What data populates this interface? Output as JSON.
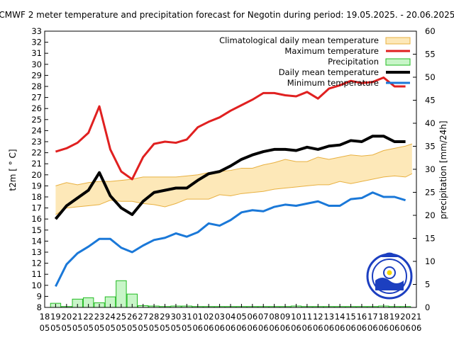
{
  "chart_data": {
    "type": "line",
    "title": "ECMWF 2 meter temperature and precipitation forecast for Negotin during period: 19.05.2025. - 20.06.2025.",
    "ylabel": "t2m [ ° C]",
    "y2label": "precipitation [mm/24h]",
    "xlabel": "",
    "ylim": [
      8,
      33
    ],
    "y2lim": [
      0,
      60
    ],
    "grid": false,
    "legend_position": "top-right",
    "x_dates": [
      "18 05",
      "19 05",
      "20 05",
      "21 05",
      "22 05",
      "23 05",
      "24 05",
      "25 05",
      "26 05",
      "27 05",
      "28 05",
      "29 05",
      "30 05",
      "31 05",
      "01 06",
      "02 06",
      "03 06",
      "04 06",
      "05 06",
      "06 06",
      "07 06",
      "08 06",
      "09 06",
      "10 06",
      "11 06",
      "12 06",
      "13 06",
      "14 06",
      "15 06",
      "16 06",
      "17 06",
      "18 06",
      "19 06",
      "20 06",
      "21 06"
    ],
    "series": [
      {
        "name": "Climatological daily mean temperature",
        "type": "band",
        "color": "#fde8b8",
        "edge_color": "#e8b040",
        "x": [
          1,
          2,
          3,
          4,
          5,
          6,
          7,
          8,
          9,
          10,
          11,
          12,
          13,
          14,
          15,
          16,
          17,
          18,
          19,
          20,
          21,
          22,
          23,
          24,
          25,
          26,
          27,
          28,
          29,
          30,
          31,
          32,
          33
        ],
        "low": [
          16.4,
          17.0,
          17.1,
          17.2,
          17.3,
          17.7,
          17.6,
          17.6,
          17.4,
          17.3,
          17.1,
          17.4,
          17.8,
          17.8,
          17.8,
          18.2,
          18.1,
          18.3,
          18.4,
          18.5,
          18.7,
          18.8,
          18.9,
          19.0,
          19.1,
          19.1,
          19.4,
          19.2,
          19.4,
          19.6,
          19.8,
          19.9,
          19.8
        ],
        "high": [
          19.0,
          19.3,
          19.1,
          19.3,
          19.4,
          19.4,
          19.5,
          19.6,
          19.8,
          19.8,
          19.8,
          19.8,
          19.9,
          20.0,
          20.2,
          20.3,
          20.4,
          20.6,
          20.6,
          20.9,
          21.1,
          21.4,
          21.2,
          21.2,
          21.6,
          21.4,
          21.6,
          21.8,
          21.7,
          21.8,
          22.2,
          22.4,
          22.6
        ],
        "high_end": 22.8,
        "low_end": 20.1
      },
      {
        "name": "Maximum temperature",
        "color": "#e02020",
        "x": [
          1,
          2,
          3,
          4,
          5,
          6,
          7,
          8,
          9,
          10,
          11,
          12,
          13,
          14,
          15,
          16,
          17,
          18,
          19,
          20,
          21,
          22,
          23,
          24,
          25,
          26,
          27,
          28,
          29,
          30,
          31,
          32,
          33
        ],
        "values": [
          22.1,
          22.4,
          22.9,
          23.8,
          26.2,
          22.3,
          20.3,
          19.6,
          21.6,
          22.8,
          23.0,
          22.9,
          23.2,
          24.3,
          24.8,
          25.2,
          25.8,
          26.3,
          26.8,
          27.4,
          27.4,
          27.2,
          27.1,
          27.5,
          26.9,
          27.8,
          28.1,
          28.5,
          28.3,
          28.4,
          28.8,
          28.0,
          28.0
        ]
      },
      {
        "name": "Daily mean temperature",
        "color": "#000000",
        "x": [
          1,
          2,
          3,
          4,
          5,
          6,
          7,
          8,
          9,
          10,
          11,
          12,
          13,
          14,
          15,
          16,
          17,
          18,
          19,
          20,
          21,
          22,
          23,
          24,
          25,
          26,
          27,
          28,
          29,
          30,
          31,
          32,
          33
        ],
        "values": [
          16.0,
          17.2,
          17.9,
          18.6,
          20.2,
          18.1,
          17.0,
          16.4,
          17.6,
          18.4,
          18.6,
          18.8,
          18.8,
          19.5,
          20.1,
          20.3,
          20.8,
          21.4,
          21.8,
          22.1,
          22.3,
          22.3,
          22.2,
          22.5,
          22.3,
          22.6,
          22.7,
          23.1,
          23.0,
          23.5,
          23.5,
          23.0,
          23.0
        ]
      },
      {
        "name": "Minimum temperature",
        "color": "#1a78d8",
        "x": [
          1,
          2,
          3,
          4,
          5,
          6,
          7,
          8,
          9,
          10,
          11,
          12,
          13,
          14,
          15,
          16,
          17,
          18,
          19,
          20,
          21,
          22,
          23,
          24,
          25,
          26,
          27,
          28,
          29,
          30,
          31,
          32,
          33
        ],
        "values": [
          9.9,
          11.9,
          12.9,
          13.5,
          14.2,
          14.2,
          13.4,
          13.0,
          13.6,
          14.1,
          14.3,
          14.7,
          14.4,
          14.8,
          15.6,
          15.4,
          15.9,
          16.6,
          16.8,
          16.7,
          17.1,
          17.3,
          17.2,
          17.4,
          17.6,
          17.2,
          17.2,
          17.8,
          17.9,
          18.4,
          18.0,
          18.0,
          17.7
        ]
      },
      {
        "name": "Precipitation",
        "type": "bar",
        "axis": "y2",
        "color": "#c8f5c8",
        "edge_color": "#22bb22",
        "x": [
          1,
          2,
          3,
          4,
          5,
          6,
          7,
          8,
          9,
          10,
          11,
          12,
          13,
          14,
          15,
          16,
          17,
          18,
          19,
          20,
          21,
          22,
          23,
          24,
          25,
          26,
          27,
          28,
          29,
          30,
          31,
          32,
          33
        ],
        "values": [
          0.9,
          0.2,
          1.8,
          2.1,
          1.0,
          2.3,
          5.8,
          2.9,
          0.4,
          0.3,
          0.2,
          0.3,
          0.3,
          0.2,
          0.2,
          0.2,
          0.2,
          0.2,
          0.2,
          0.2,
          0.2,
          0.2,
          0.3,
          0.2,
          0.2,
          0.2,
          0.2,
          0.2,
          0.2,
          0.2,
          0.3,
          0.2,
          0.2
        ]
      }
    ],
    "legend": [
      {
        "label": "Climatological daily mean temperature"
      },
      {
        "label": "Maximum temperature"
      },
      {
        "label": "Precipitation"
      },
      {
        "label": "Daily mean temperature"
      },
      {
        "label": "Minimum temperature"
      }
    ],
    "logo": "rhmz-serbia-logo"
  }
}
